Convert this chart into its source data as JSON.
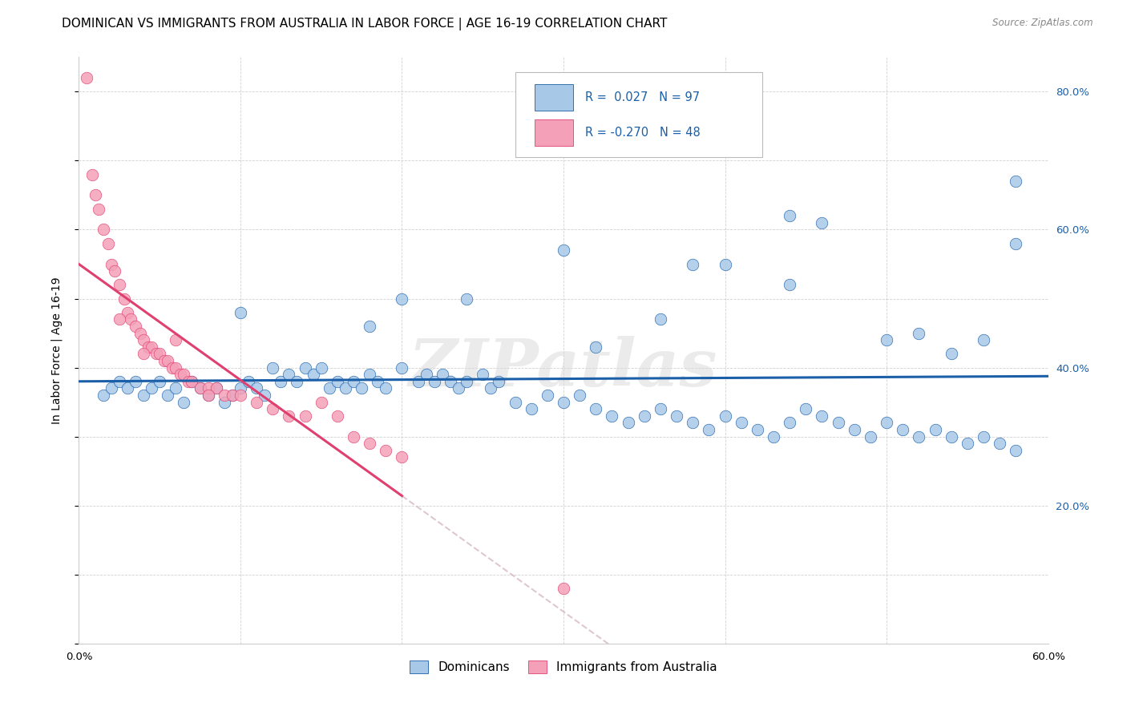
{
  "title": "DOMINICAN VS IMMIGRANTS FROM AUSTRALIA IN LABOR FORCE | AGE 16-19 CORRELATION CHART",
  "source": "Source: ZipAtlas.com",
  "ylabel": "In Labor Force | Age 16-19",
  "x_min": 0.0,
  "x_max": 0.6,
  "y_min": 0.0,
  "y_max": 0.85,
  "x_ticks": [
    0.0,
    0.1,
    0.2,
    0.3,
    0.4,
    0.5,
    0.6
  ],
  "y_ticks": [
    0.0,
    0.1,
    0.2,
    0.3,
    0.4,
    0.5,
    0.6,
    0.7,
    0.8
  ],
  "blue_color": "#a8c8e8",
  "pink_color": "#f4a0b8",
  "blue_line_color": "#1a5fa8",
  "pink_line_color": "#e04070",
  "R_blue": 0.027,
  "N_blue": 97,
  "R_pink": -0.27,
  "N_pink": 48,
  "legend_label_blue": "Dominicans",
  "legend_label_pink": "Immigrants from Australia",
  "blue_x": [
    0.015,
    0.02,
    0.025,
    0.03,
    0.035,
    0.04,
    0.045,
    0.05,
    0.055,
    0.06,
    0.065,
    0.07,
    0.075,
    0.08,
    0.085,
    0.09,
    0.095,
    0.1,
    0.105,
    0.11,
    0.115,
    0.12,
    0.125,
    0.13,
    0.135,
    0.14,
    0.145,
    0.15,
    0.155,
    0.16,
    0.165,
    0.17,
    0.175,
    0.18,
    0.185,
    0.19,
    0.2,
    0.21,
    0.215,
    0.22,
    0.225,
    0.23,
    0.235,
    0.24,
    0.25,
    0.255,
    0.26,
    0.27,
    0.28,
    0.29,
    0.3,
    0.31,
    0.32,
    0.33,
    0.34,
    0.35,
    0.36,
    0.37,
    0.38,
    0.39,
    0.4,
    0.41,
    0.42,
    0.43,
    0.44,
    0.45,
    0.46,
    0.47,
    0.48,
    0.49,
    0.5,
    0.51,
    0.52,
    0.53,
    0.54,
    0.55,
    0.56,
    0.57,
    0.58,
    0.32,
    0.36,
    0.44,
    0.5,
    0.56,
    0.58,
    0.1,
    0.18,
    0.24,
    0.3,
    0.38,
    0.44,
    0.52,
    0.58,
    0.4,
    0.46,
    0.54,
    0.2
  ],
  "blue_y": [
    0.36,
    0.37,
    0.38,
    0.37,
    0.38,
    0.36,
    0.37,
    0.38,
    0.36,
    0.37,
    0.35,
    0.38,
    0.37,
    0.36,
    0.37,
    0.35,
    0.36,
    0.37,
    0.38,
    0.37,
    0.36,
    0.4,
    0.38,
    0.39,
    0.38,
    0.4,
    0.39,
    0.4,
    0.37,
    0.38,
    0.37,
    0.38,
    0.37,
    0.39,
    0.38,
    0.37,
    0.4,
    0.38,
    0.39,
    0.38,
    0.39,
    0.38,
    0.37,
    0.38,
    0.39,
    0.37,
    0.38,
    0.35,
    0.34,
    0.36,
    0.35,
    0.36,
    0.34,
    0.33,
    0.32,
    0.33,
    0.34,
    0.33,
    0.32,
    0.31,
    0.33,
    0.32,
    0.31,
    0.3,
    0.32,
    0.34,
    0.33,
    0.32,
    0.31,
    0.3,
    0.32,
    0.31,
    0.3,
    0.31,
    0.3,
    0.29,
    0.3,
    0.29,
    0.28,
    0.43,
    0.47,
    0.52,
    0.44,
    0.44,
    0.67,
    0.48,
    0.46,
    0.5,
    0.57,
    0.55,
    0.62,
    0.45,
    0.58,
    0.55,
    0.61,
    0.42,
    0.5
  ],
  "pink_x": [
    0.005,
    0.008,
    0.01,
    0.012,
    0.015,
    0.018,
    0.02,
    0.022,
    0.025,
    0.028,
    0.03,
    0.032,
    0.035,
    0.038,
    0.04,
    0.043,
    0.045,
    0.048,
    0.05,
    0.053,
    0.055,
    0.058,
    0.06,
    0.063,
    0.065,
    0.068,
    0.07,
    0.075,
    0.08,
    0.085,
    0.09,
    0.095,
    0.1,
    0.11,
    0.12,
    0.13,
    0.14,
    0.15,
    0.16,
    0.17,
    0.18,
    0.19,
    0.2,
    0.025,
    0.04,
    0.06,
    0.08,
    0.3
  ],
  "pink_y": [
    0.82,
    0.68,
    0.65,
    0.63,
    0.6,
    0.58,
    0.55,
    0.54,
    0.52,
    0.5,
    0.48,
    0.47,
    0.46,
    0.45,
    0.44,
    0.43,
    0.43,
    0.42,
    0.42,
    0.41,
    0.41,
    0.4,
    0.4,
    0.39,
    0.39,
    0.38,
    0.38,
    0.37,
    0.37,
    0.37,
    0.36,
    0.36,
    0.36,
    0.35,
    0.34,
    0.33,
    0.33,
    0.35,
    0.33,
    0.3,
    0.29,
    0.28,
    0.27,
    0.47,
    0.42,
    0.44,
    0.36,
    0.08
  ],
  "watermark": "ZIPatlas",
  "title_fontsize": 11,
  "axis_label_fontsize": 10,
  "tick_fontsize": 9.5
}
